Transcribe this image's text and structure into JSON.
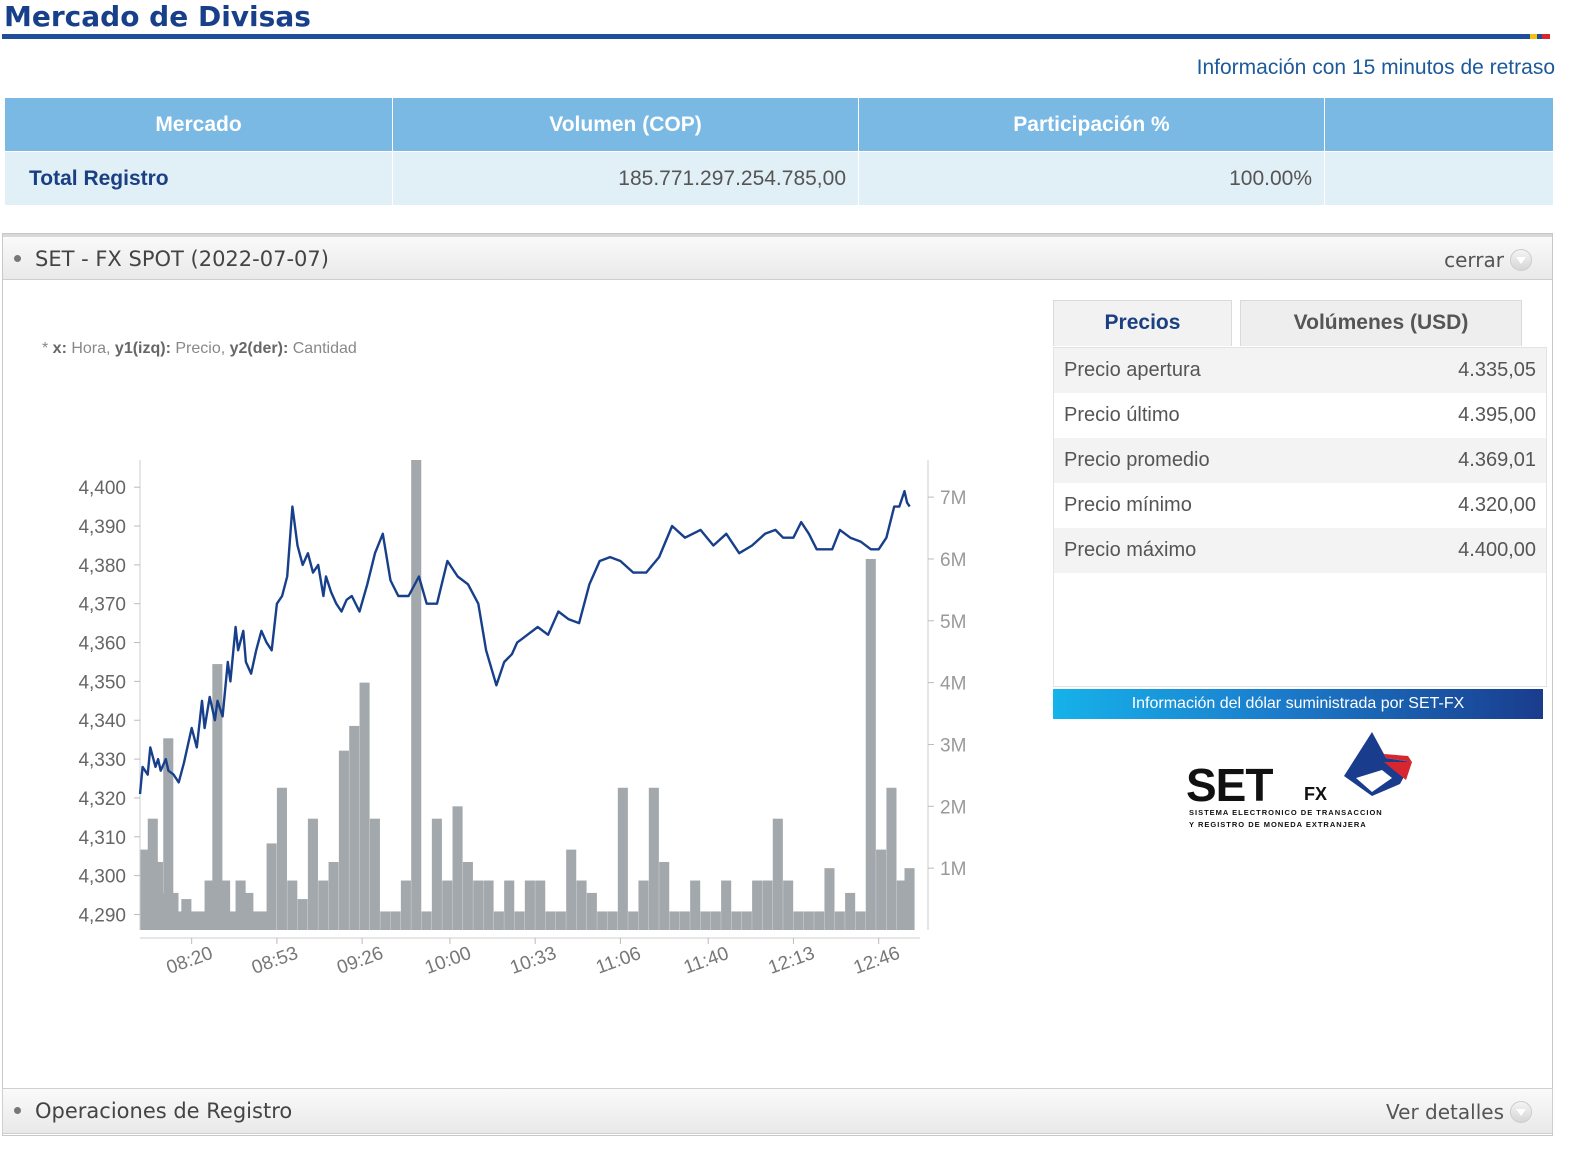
{
  "page": {
    "title": "Mercado de Divisas",
    "delay_notice": "Información con 15 minutos de retraso"
  },
  "summary_table": {
    "headers": [
      "Mercado",
      "Volumen (COP)",
      "Participación %",
      ""
    ],
    "rows": [
      {
        "market": "Total Registro",
        "volume": "185.771.297.254.785,00",
        "share": "100.00%",
        "extra": ""
      }
    ]
  },
  "set_panel": {
    "title": "SET - FX SPOT (2022-07-07)",
    "close_label": "cerrar",
    "chart_note": {
      "x_key": "x:",
      "x_desc": " Hora, ",
      "y1_key": "y1(izq):",
      "y1_desc": " Precio, ",
      "y2_key": "y2(der):",
      "y2_desc": " Cantidad"
    }
  },
  "tabs": [
    {
      "label": "Precios",
      "active": true
    },
    {
      "label": "Volúmenes (USD)",
      "active": false
    }
  ],
  "prices": [
    {
      "label": "Precio apertura",
      "value": "4.335,05"
    },
    {
      "label": "Precio último",
      "value": "4.395,00"
    },
    {
      "label": "Precio promedio",
      "value": "4.369,01"
    },
    {
      "label": "Precio mínimo",
      "value": "4.320,00"
    },
    {
      "label": "Precio máximo",
      "value": "4.400,00"
    }
  ],
  "banner_text": "Información del dólar suministrada por SET-FX",
  "logo": {
    "word": "SET",
    "sub": "FX",
    "tagline_1": "SISTEMA ELECTRONICO DE TRANSACCION",
    "tagline_2": "Y REGISTRO DE MONEDA EXTRANJERA"
  },
  "footer": {
    "title": "Operaciones de Registro",
    "details_label": "Ver detalles"
  },
  "colors": {
    "title": "#173f8a",
    "header_bg": "#7ab9e4",
    "row_bg": "#e1eff6",
    "price_line": "#173f8a",
    "volume_bars": "#a3a8ac"
  },
  "chart_data": {
    "type": "line",
    "xlabel": "Hora",
    "y1label": "Precio",
    "y2label": "Cantidad",
    "x_ticks": [
      "08:20",
      "08:53",
      "09:26",
      "10:00",
      "10:33",
      "11:06",
      "11:40",
      "12:13",
      "12:46"
    ],
    "y1_ticks": [
      "4,290",
      "4,300",
      "4,310",
      "4,320",
      "4,330",
      "4,340",
      "4,350",
      "4,360",
      "4,370",
      "4,380",
      "4,390",
      "4,400"
    ],
    "y2_ticks": [
      "1M",
      "2M",
      "3M",
      "4M",
      "5M",
      "6M",
      "7M"
    ],
    "y1lim": [
      4286,
      4407
    ],
    "y2lim": [
      0,
      7.6
    ],
    "x_range_minutes": [
      480,
      782
    ],
    "price": {
      "name": "Precio",
      "minutes": [
        480,
        481,
        483,
        484,
        486,
        487,
        488,
        490,
        491,
        493,
        495,
        497,
        500,
        502,
        504,
        505,
        507,
        509,
        510,
        512,
        514,
        515,
        517,
        518,
        520,
        521,
        523,
        525,
        527,
        529,
        531,
        533,
        535,
        537,
        539,
        541,
        543,
        545,
        547,
        549,
        551,
        552,
        554,
        556,
        558,
        560,
        562,
        565,
        568,
        571,
        574,
        577,
        580,
        584,
        588,
        591,
        595,
        599,
        603,
        607,
        611,
        614,
        618,
        621,
        624,
        626,
        628,
        630,
        634,
        638,
        642,
        646,
        650,
        654,
        658,
        662,
        666,
        671,
        676,
        681,
        686,
        691,
        697,
        702,
        707,
        712,
        717,
        722,
        726,
        729,
        733,
        736,
        739,
        742,
        745,
        748,
        751,
        755,
        759,
        763,
        766,
        769,
        772,
        774,
        776,
        777,
        778
      ],
      "values": [
        4321,
        4328,
        4326,
        4333,
        4328,
        4330,
        4327,
        4330,
        4327,
        4326,
        4324,
        4329,
        4338,
        4333,
        4345,
        4338,
        4346,
        4340,
        4345,
        4341,
        4355,
        4350,
        4364,
        4358,
        4363,
        4355,
        4352,
        4358,
        4363,
        4360,
        4358,
        4370,
        4372,
        4377,
        4395,
        4385,
        4380,
        4383,
        4378,
        4380,
        4372,
        4377,
        4373,
        4370,
        4368,
        4371,
        4372,
        4368,
        4375,
        4383,
        4388,
        4376,
        4372,
        4372,
        4377,
        4370,
        4370,
        4381,
        4377,
        4375,
        4370,
        4358,
        4349,
        4355,
        4357,
        4360,
        4361,
        4362,
        4364,
        4362,
        4368,
        4366,
        4365,
        4375,
        4381,
        4382,
        4381,
        4378,
        4378,
        4382,
        4390,
        4387,
        4389,
        4385,
        4388,
        4383,
        4385,
        4388,
        4389,
        4387,
        4387,
        4391,
        4388,
        4384,
        4384,
        4384,
        4389,
        4387,
        4386,
        4384,
        4384,
        4387,
        4395,
        4395,
        4399,
        4396,
        4395
      ]
    },
    "volume_M": {
      "name": "Cantidad",
      "minutes": [
        480,
        483,
        485,
        487,
        489,
        491,
        493,
        496,
        499,
        502,
        505,
        508,
        511,
        514,
        517,
        520,
        523,
        526,
        529,
        533,
        537,
        541,
        545,
        549,
        553,
        557,
        561,
        565,
        569,
        573,
        577,
        581,
        585,
        589,
        593,
        597,
        601,
        605,
        609,
        613,
        617,
        621,
        625,
        629,
        633,
        637,
        641,
        645,
        649,
        653,
        657,
        661,
        665,
        669,
        673,
        677,
        681,
        685,
        689,
        693,
        697,
        701,
        705,
        709,
        713,
        717,
        721,
        725,
        729,
        733,
        737,
        741,
        745,
        749,
        753,
        757,
        761,
        765,
        769,
        773,
        776
      ],
      "values": [
        1.3,
        1.8,
        1.1,
        0.6,
        3.1,
        0.6,
        0.3,
        0.5,
        0.3,
        0.3,
        0.8,
        4.3,
        0.8,
        0.3,
        0.8,
        0.6,
        0.3,
        0.3,
        1.4,
        2.3,
        0.8,
        0.5,
        1.8,
        0.8,
        1.1,
        2.9,
        3.3,
        4.0,
        1.8,
        0.3,
        0.3,
        0.8,
        7.6,
        0.3,
        1.8,
        0.8,
        2.0,
        1.1,
        0.8,
        0.8,
        0.3,
        0.8,
        0.3,
        0.8,
        0.8,
        0.3,
        0.3,
        1.3,
        0.8,
        0.6,
        0.3,
        0.3,
        2.3,
        0.3,
        0.8,
        2.3,
        1.1,
        0.3,
        0.3,
        0.8,
        0.3,
        0.3,
        0.8,
        0.3,
        0.3,
        0.8,
        0.8,
        1.8,
        0.8,
        0.3,
        0.3,
        0.3,
        1.0,
        0.3,
        0.6,
        0.3,
        6.0,
        1.3,
        2.3,
        0.8,
        1.0
      ]
    }
  }
}
